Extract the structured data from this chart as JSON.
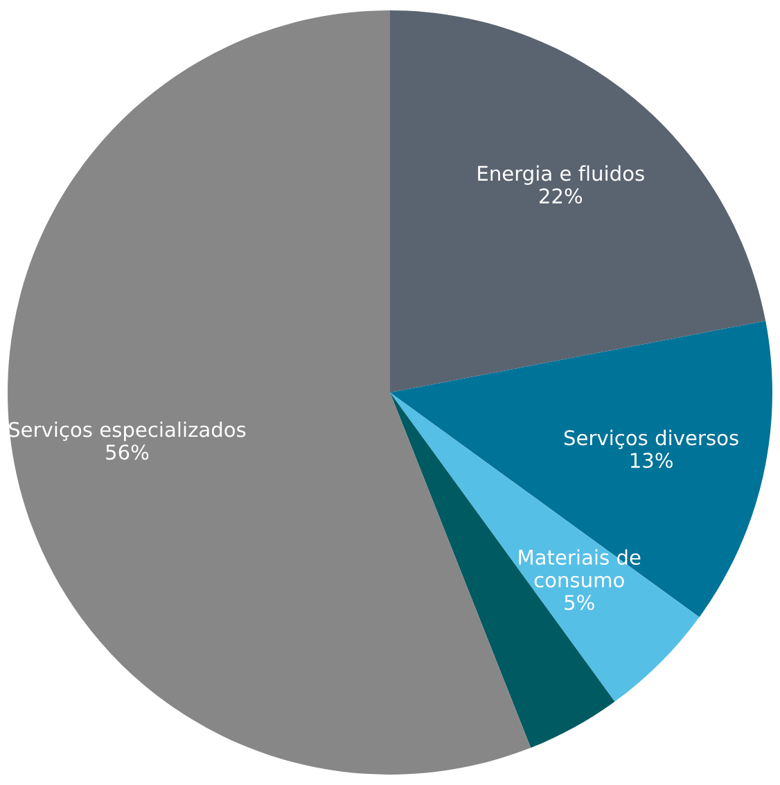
{
  "chart_data": {
    "type": "pie",
    "categories": [
      "Energia e fluidos",
      "Serviços diversos",
      "Materiais de\nconsumo",
      null,
      "Serviços especializados"
    ],
    "values": [
      22,
      13,
      5,
      4,
      56
    ],
    "colors": [
      "#5a6470",
      "#007398",
      "#56bfe6",
      "#005a62",
      "#878787"
    ],
    "value_labels": [
      "22%",
      "13%",
      "5%",
      null,
      "56%"
    ]
  }
}
